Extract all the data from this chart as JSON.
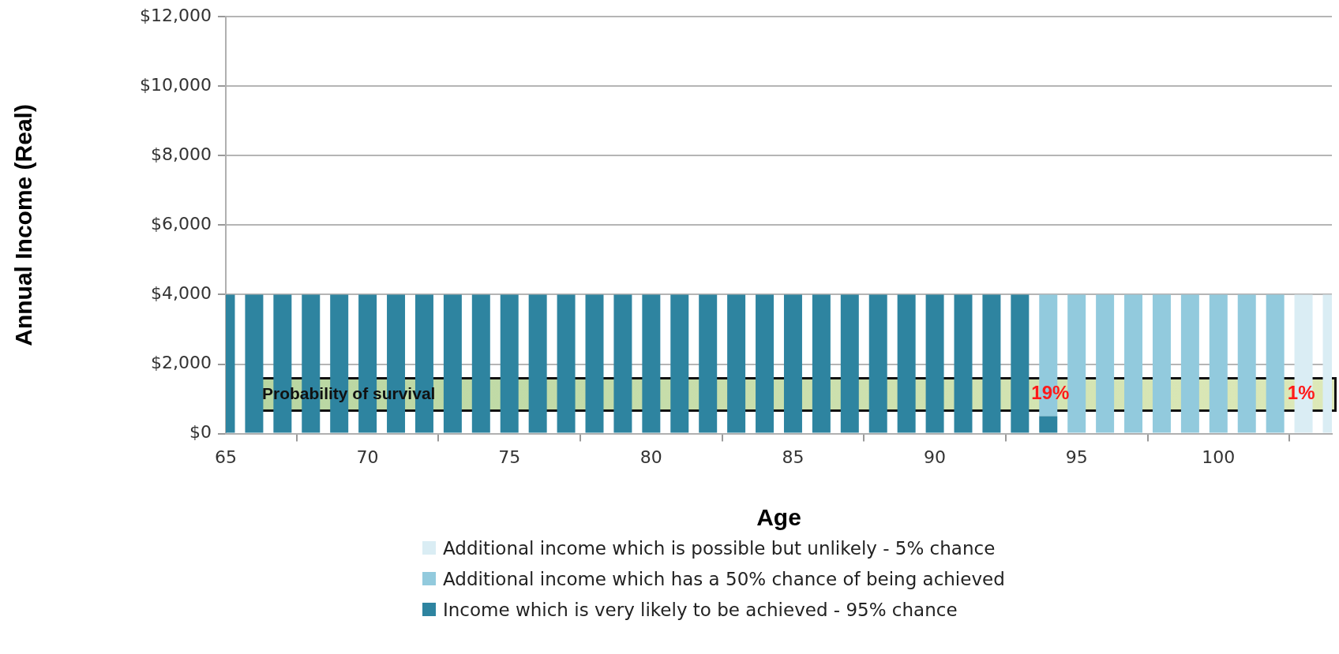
{
  "chart_data": {
    "type": "bar",
    "stacked": true,
    "xlabel": "Age",
    "ylabel": "Annual Income (Real)",
    "x": [
      65,
      66,
      67,
      68,
      69,
      70,
      71,
      72,
      73,
      74,
      75,
      76,
      77,
      78,
      79,
      80,
      81,
      82,
      83,
      84,
      85,
      86,
      87,
      88,
      89,
      90,
      91,
      92,
      93,
      94,
      95,
      96,
      97,
      98,
      99,
      100,
      101,
      102,
      103,
      104
    ],
    "series": [
      {
        "name": "Income which is very likely to be achieved - 95% chance",
        "color": "#2e84a0",
        "values": [
          4000,
          4000,
          4000,
          4000,
          4000,
          4000,
          4000,
          4000,
          4000,
          4000,
          4000,
          4000,
          4000,
          4000,
          4000,
          4000,
          4000,
          4000,
          4000,
          4000,
          4000,
          4000,
          4000,
          4000,
          4000,
          4000,
          4000,
          4000,
          4000,
          500,
          null,
          null,
          null,
          null,
          null,
          null,
          null,
          null,
          null,
          null
        ]
      },
      {
        "name": "Additional income which has a 50% chance of being achieved",
        "color": "#92cadd",
        "values": [
          null,
          null,
          null,
          null,
          null,
          null,
          null,
          null,
          null,
          null,
          null,
          null,
          null,
          null,
          null,
          null,
          null,
          null,
          null,
          null,
          null,
          null,
          null,
          null,
          null,
          null,
          null,
          null,
          null,
          3500,
          4000,
          4000,
          4000,
          4000,
          4000,
          4000,
          4000,
          4000,
          null,
          null
        ]
      },
      {
        "name": "Additional income which is possible but unlikely - 5% chance",
        "color": "#daedf4",
        "values": [
          null,
          null,
          null,
          null,
          null,
          null,
          null,
          null,
          null,
          null,
          null,
          null,
          null,
          null,
          null,
          null,
          null,
          null,
          null,
          null,
          null,
          null,
          null,
          null,
          null,
          null,
          null,
          null,
          null,
          null,
          null,
          null,
          null,
          null,
          null,
          null,
          null,
          null,
          4000,
          4000
        ]
      }
    ],
    "xlim": [
      65,
      104
    ],
    "xticks": [
      65,
      70,
      75,
      80,
      85,
      90,
      95,
      100
    ],
    "ylim": [
      0,
      12000
    ],
    "yticks": [
      {
        "value": 0,
        "label": "$0"
      },
      {
        "value": 2000,
        "label": "$2,000"
      },
      {
        "value": 4000,
        "label": "$4,000"
      },
      {
        "value": 6000,
        "label": "$6,000"
      },
      {
        "value": 8000,
        "label": "$8,000"
      },
      {
        "value": 10000,
        "label": "$10,000"
      },
      {
        "value": 12000,
        "label": "$12,000"
      }
    ],
    "grid": "y",
    "legend": "bottom",
    "annotations": [
      "Probability of survival",
      "19%",
      "1%"
    ]
  }
}
